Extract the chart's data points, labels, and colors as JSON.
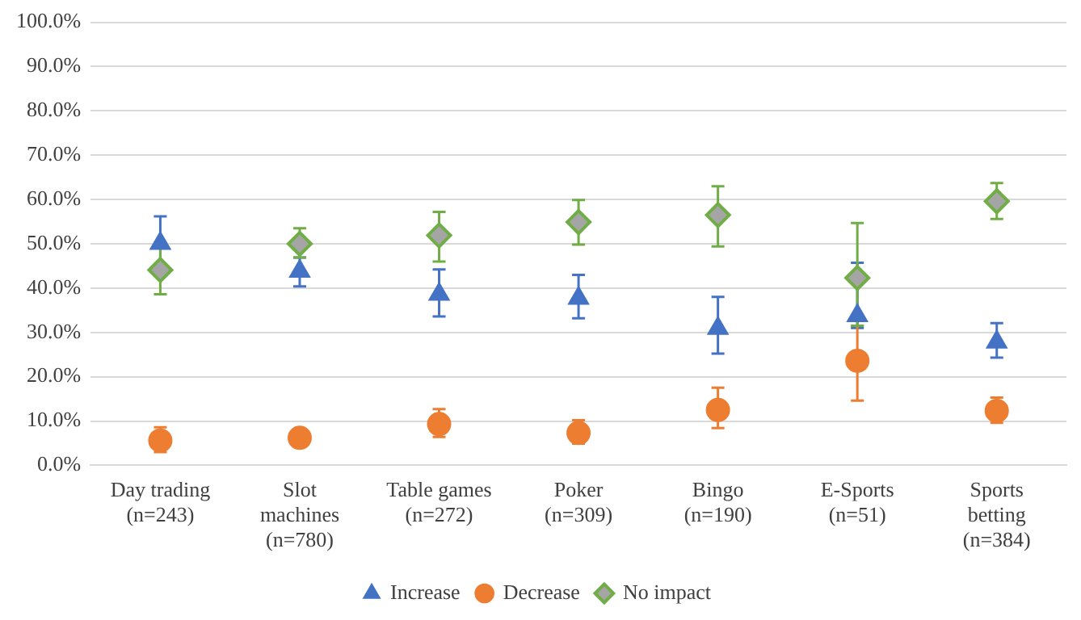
{
  "chart_data": {
    "type": "scatter",
    "categories": [
      "Day trading (n=243)",
      "Slot machines (n=780)",
      "Table games (n=272)",
      "Poker (n=309)",
      "Bingo (n=190)",
      "E-Sports (n=51)",
      "Sports betting (n=384)"
    ],
    "series": [
      {
        "name": "Increase",
        "color": "#4472c4",
        "marker": "triangle",
        "values": [
          50.1,
          43.8,
          38.6,
          37.7,
          30.9,
          33.8,
          27.8
        ],
        "errors": [
          [
            44,
            56.2
          ],
          [
            40.4,
            46.9
          ],
          [
            33.6,
            44.2
          ],
          [
            33.2,
            43
          ],
          [
            25.2,
            38
          ],
          [
            31,
            45.7
          ],
          [
            24.3,
            32.1
          ]
        ]
      },
      {
        "name": "Decrease",
        "color": "#ed7d31",
        "marker": "circle",
        "values": [
          5.6,
          6.2,
          9.3,
          7.3,
          12.5,
          23.6,
          12.3
        ],
        "errors": [
          [
            3,
            8.6
          ],
          null,
          [
            6.4,
            12.7
          ],
          [
            4.9,
            10.2
          ],
          [
            8.4,
            17.5
          ],
          [
            14.6,
            31.5
          ],
          [
            9.6,
            15.3
          ]
        ]
      },
      {
        "name": "No impact",
        "color": "#70ad47",
        "marker": "diamond",
        "values": [
          44.1,
          50,
          51.9,
          54.9,
          56.5,
          42.3,
          59.6
        ],
        "errors": [
          [
            38.6,
            49.6
          ],
          [
            46.9,
            53.5
          ],
          [
            46,
            57.2
          ],
          [
            49.8,
            59.9
          ],
          [
            49.4,
            63
          ],
          [
            31.5,
            54.7
          ],
          [
            55.6,
            63.7
          ]
        ]
      }
    ],
    "ylim": [
      0,
      100
    ],
    "yticks": [
      {
        "value": 0,
        "label": "0.0%"
      },
      {
        "value": 10,
        "label": "10.0%"
      },
      {
        "value": 20,
        "label": "20.0%"
      },
      {
        "value": 30,
        "label": "30.0%"
      },
      {
        "value": 40,
        "label": "40.0%"
      },
      {
        "value": 50,
        "label": "50.0%"
      },
      {
        "value": 60,
        "label": "60.0%"
      },
      {
        "value": 70,
        "label": "70.0%"
      },
      {
        "value": 80,
        "label": "80.0%"
      },
      {
        "value": 90,
        "label": "90.0%"
      },
      {
        "value": 100,
        "label": "100.0%"
      }
    ],
    "grid": "y",
    "legend": "bottom"
  }
}
